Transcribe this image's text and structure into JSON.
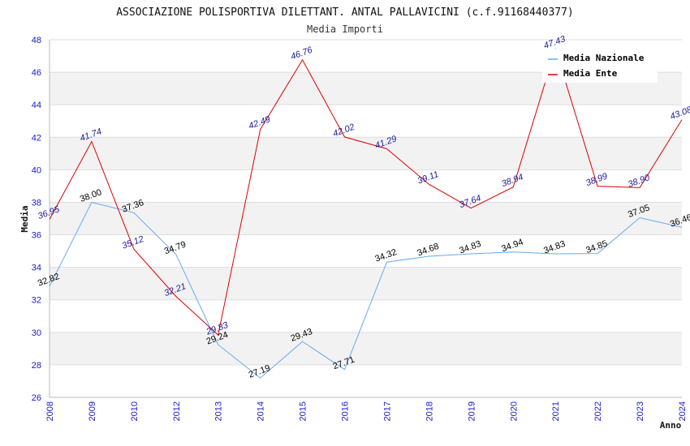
{
  "chart_data": {
    "type": "line",
    "title": "ASSOCIAZIONE POLISPORTIVA DILETTANT. ANTAL PALLAVICINI (c.f.91168440377)",
    "subtitle": "Media Importi",
    "xlabel": "Anno",
    "ylabel": "Media",
    "ylim": [
      26,
      48
    ],
    "yticks": [
      26,
      28,
      30,
      32,
      34,
      36,
      38,
      40,
      42,
      44,
      46,
      48
    ],
    "categories": [
      "2008",
      "2009",
      "2010",
      "2012",
      "2013",
      "2014",
      "2015",
      "2016",
      "2017",
      "2018",
      "2019",
      "2020",
      "2021",
      "2022",
      "2023",
      "2024"
    ],
    "legend_position": "top-right",
    "series": [
      {
        "name": "Media Nazionale",
        "color": "#66aaee",
        "values": [
          32.82,
          38.0,
          37.36,
          34.79,
          29.24,
          27.19,
          29.43,
          27.71,
          34.32,
          34.68,
          34.83,
          34.94,
          34.83,
          34.85,
          37.05,
          36.46
        ],
        "labels": [
          "32.82",
          "38.00",
          "37.36",
          "34.79",
          "29.24",
          "27.19",
          "29.43",
          "27.71",
          "34.32",
          "34.68",
          "34.83",
          "34.94",
          "34.83",
          "34.85",
          "37.05",
          "36.46"
        ]
      },
      {
        "name": "Media Ente",
        "color": "#dd0000",
        "values": [
          36.95,
          41.74,
          35.12,
          32.21,
          29.83,
          42.49,
          46.76,
          42.02,
          41.29,
          39.11,
          37.64,
          38.94,
          47.43,
          38.99,
          38.9,
          43.08
        ],
        "labels": [
          "36.95",
          "41.74",
          "35.12",
          "32.21",
          "29.83",
          "42.49",
          "46.76",
          "42.02",
          "41.29",
          "39.11",
          "37.64",
          "38.94",
          "47.43",
          "38.99",
          "38.90",
          "43.08"
        ]
      }
    ]
  }
}
